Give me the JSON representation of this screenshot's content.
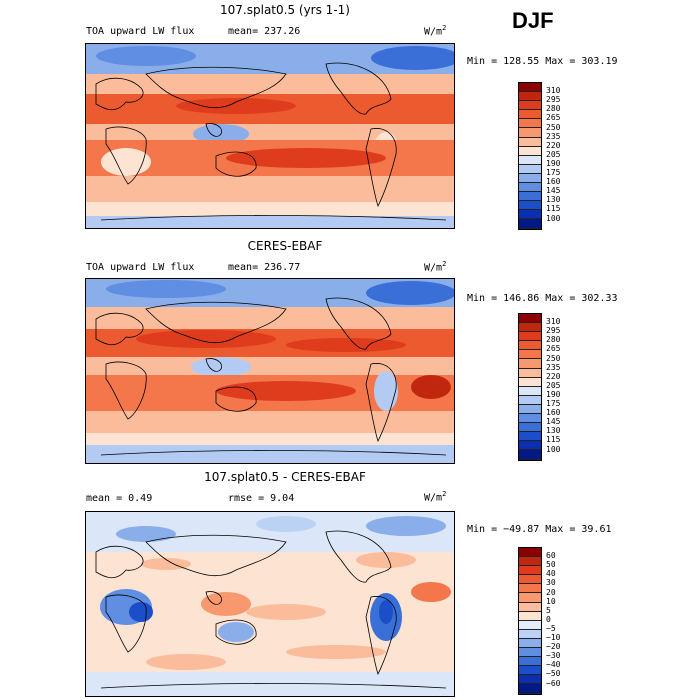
{
  "season": "DJF",
  "chart_data": [
    {
      "type": "heatmap",
      "title": "107.splat0.5 (yrs 1-1)",
      "variable": "TOA upward LW flux",
      "stat_label": "mean= 237.26",
      "units": "W/m",
      "units_exp": "2",
      "minmax": "Min = 128.55 Max = 303.19",
      "colorbar": {
        "levels": [
          "310",
          "295",
          "280",
          "265",
          "250",
          "235",
          "220",
          "205",
          "190",
          "175",
          "160",
          "145",
          "130",
          "115",
          "100"
        ],
        "colors": [
          "#8b0000",
          "#c1270f",
          "#de3c1c",
          "#ec5a30",
          "#f4774b",
          "#f8986e",
          "#fbbc9c",
          "#fde3d2",
          "#dbe7f8",
          "#b3cbf2",
          "#8aaeea",
          "#5f8ee2",
          "#3a6fd8",
          "#1c4ec9",
          "#0a2fb0",
          "#001a85"
        ]
      }
    },
    {
      "type": "heatmap",
      "title": "CERES-EBAF",
      "variable": "TOA upward LW flux",
      "stat_label": "mean= 236.77",
      "units": "W/m",
      "units_exp": "2",
      "minmax": "Min = 146.86 Max = 302.33",
      "colorbar": {
        "levels": [
          "310",
          "295",
          "280",
          "265",
          "250",
          "235",
          "220",
          "205",
          "190",
          "175",
          "160",
          "145",
          "130",
          "115",
          "100"
        ],
        "colors": [
          "#8b0000",
          "#c1270f",
          "#de3c1c",
          "#ec5a30",
          "#f4774b",
          "#f8986e",
          "#fbbc9c",
          "#fde3d2",
          "#dbe7f8",
          "#b3cbf2",
          "#8aaeea",
          "#5f8ee2",
          "#3a6fd8",
          "#1c4ec9",
          "#0a2fb0",
          "#001a85"
        ]
      }
    },
    {
      "type": "heatmap",
      "title": "107.splat0.5 - CERES-EBAF",
      "mean_label": "mean =    0.49",
      "rmse_label": "rmse =    9.04",
      "units": "W/m",
      "units_exp": "2",
      "minmax": "Min = −49.87 Max =  39.61",
      "colorbar": {
        "levels": [
          "60",
          "50",
          "40",
          "30",
          "20",
          "10",
          "5",
          "0",
          "−5",
          "−10",
          "−20",
          "−30",
          "−40",
          "−50",
          "−60"
        ],
        "colors": [
          "#8b0000",
          "#c1270f",
          "#de3c1c",
          "#ec5a30",
          "#f4774b",
          "#f8986e",
          "#fbbc9c",
          "#fde3d2",
          "#e2ecfa",
          "#bcd2f4",
          "#8aaeea",
          "#5f8ee2",
          "#3a6fd8",
          "#1c4ec9",
          "#0a2fb0",
          "#001a85"
        ]
      }
    }
  ]
}
